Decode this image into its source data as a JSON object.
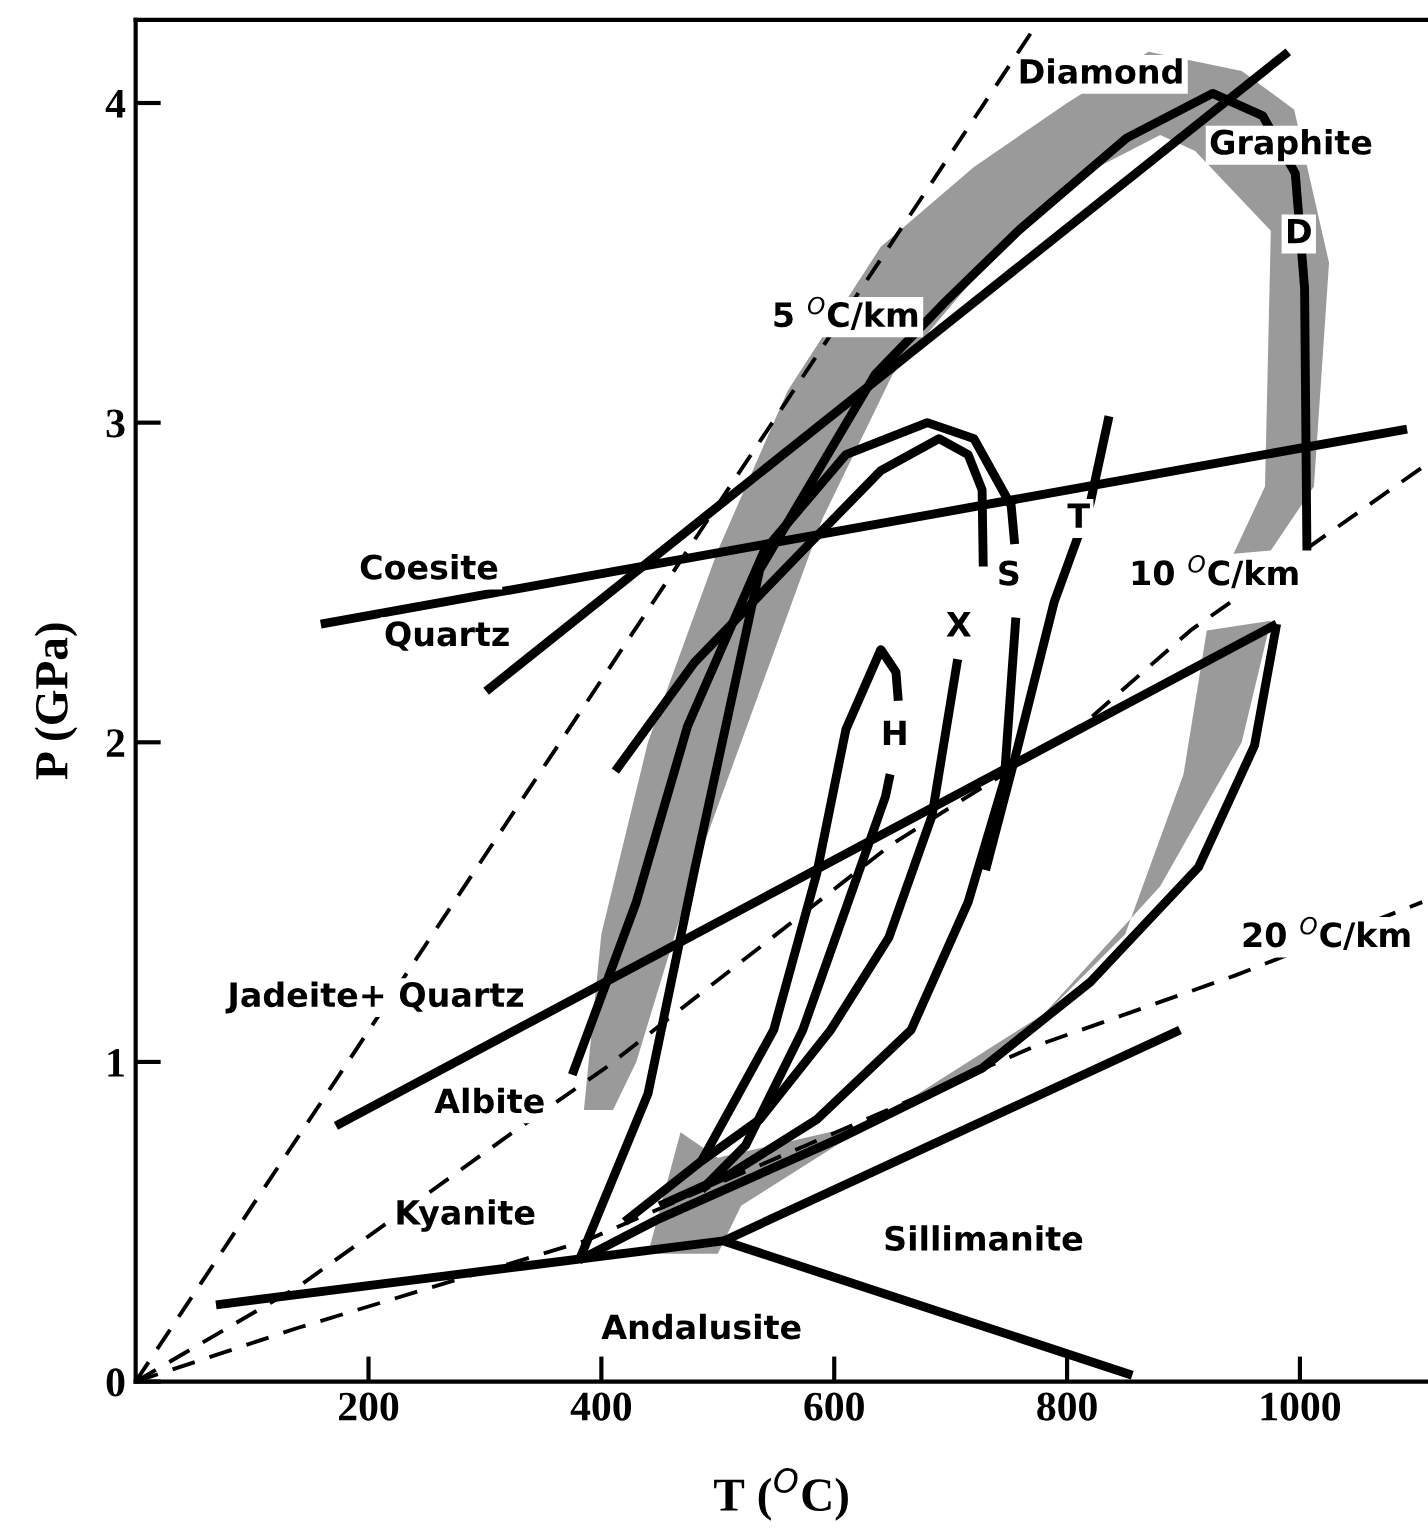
{
  "chart_data": {
    "type": "line",
    "xlabel": "T ($^{O}$C)",
    "ylabel": "P (GPa)",
    "xlim": [
      0,
      1110
    ],
    "ylim": [
      0,
      4.26
    ],
    "xticks": [
      200,
      400,
      600,
      800,
      1000
    ],
    "yticks": [
      0,
      1,
      2,
      3,
      4
    ],
    "grid": false,
    "legend": false,
    "marker": "none",
    "series": [
      {
        "type": "area",
        "color": "#9a9a9a",
        "x": [
          385,
          400,
          440,
          500,
          560,
          640,
          720,
          800,
          870,
          950,
          995,
          1025,
          1012,
          975,
          943,
          970,
          975,
          910,
          880,
          800,
          720,
          650,
          590,
          540,
          480,
          430,
          410
        ],
        "values": [
          0.85,
          1.4,
          2.0,
          2.6,
          3.1,
          3.55,
          3.8,
          4.0,
          4.16,
          4.1,
          3.98,
          3.5,
          2.8,
          2.6,
          2.59,
          2.8,
          3.6,
          3.85,
          3.9,
          3.75,
          3.45,
          3.15,
          2.7,
          2.2,
          1.6,
          1.0,
          0.85
        ]
      },
      {
        "type": "area",
        "color": "#9a9a9a",
        "x": [
          920,
          975,
          950,
          880,
          780,
          650,
          520,
          500,
          440,
          468,
          500,
          620,
          740,
          850,
          900
        ],
        "values": [
          2.35,
          2.38,
          2.0,
          1.55,
          1.15,
          0.85,
          0.55,
          0.4,
          0.4,
          0.78,
          0.7,
          0.8,
          1.0,
          1.4,
          1.9
        ]
      },
      {
        "color": "#000000",
        "line_style": "dashed",
        "x": [
          0,
          771
        ],
        "values": [
          0,
          4.23
        ]
      },
      {
        "color": "#000000",
        "line_style": "dashed",
        "x": [
          0,
          141,
          324,
          403,
          649,
          815,
          906,
          1105
        ],
        "values": [
          0,
          0.3,
          0.78,
          0.98,
          1.68,
          2.06,
          2.35,
          2.86
        ]
      },
      {
        "color": "#000000",
        "line_style": "dashed",
        "x": [
          0,
          141,
          386,
          773,
          944,
          1105
        ],
        "values": [
          0,
          0.17,
          0.44,
          1.05,
          1.27,
          1.5
        ]
      },
      {
        "color": "#000000",
        "x": [
          159,
          1092
        ],
        "values": [
          2.37,
          2.98
        ]
      },
      {
        "color": "#000000",
        "x": [
          301,
          990
        ],
        "values": [
          2.16,
          4.16
        ]
      },
      {
        "color": "#000000",
        "x": [
          172,
          980
        ],
        "values": [
          0.8,
          2.37
        ]
      },
      {
        "color": "#000000",
        "x": [
          69,
          505,
          856
        ],
        "values": [
          0.24,
          0.44,
          0.02
        ]
      },
      {
        "color": "#000000",
        "x": [
          505,
          897
        ],
        "values": [
          0.44,
          1.1
        ]
      },
      {
        "color": "#000000",
        "x": [
          381,
          440,
          480,
          536,
          635,
          696,
          758,
          851,
          925,
          968,
          996,
          1004,
          1006
        ],
        "values": [
          0.38,
          0.9,
          1.6,
          2.54,
          3.15,
          3.38,
          3.6,
          3.89,
          4.03,
          3.96,
          3.78,
          3.42,
          2.6
        ]
      },
      {
        "color": "#000000",
        "x": [
          980,
          961,
          913,
          820,
          727,
          604,
          450,
          381
        ],
        "values": [
          2.37,
          1.99,
          1.61,
          1.25,
          0.98,
          0.76,
          0.51,
          0.38
        ]
      },
      {
        "color": "#000000",
        "x": [
          375,
          430,
          474,
          540,
          610,
          680,
          720,
          752,
          755
        ],
        "values": [
          0.96,
          1.5,
          2.05,
          2.6,
          2.9,
          3.0,
          2.95,
          2.74,
          2.62
        ]
      },
      {
        "color": "#000000",
        "x": [
          756,
          746,
          715,
          666,
          585,
          511,
          450
        ],
        "values": [
          2.39,
          1.88,
          1.5,
          1.1,
          0.82,
          0.65,
          0.55
        ]
      },
      {
        "color": "#000000",
        "x": [
          412,
          480,
          573,
          640,
          690,
          715,
          727,
          728
        ],
        "values": [
          1.91,
          2.25,
          2.6,
          2.85,
          2.95,
          2.9,
          2.79,
          2.55
        ]
      },
      {
        "color": "#000000",
        "x": [
          706,
          684,
          647,
          597,
          536,
          486,
          420
        ],
        "values": [
          2.26,
          1.77,
          1.39,
          1.1,
          0.82,
          0.69,
          0.5
        ]
      },
      {
        "color": "#000000",
        "x": [
          836,
          820,
          800,
          789,
          758,
          730
        ],
        "values": [
          3.02,
          2.75,
          2.55,
          2.44,
          1.99,
          1.6
        ]
      },
      {
        "color": "#000000",
        "x": [
          486,
          548,
          585,
          610,
          640,
          653,
          655
        ],
        "values": [
          0.69,
          1.1,
          1.59,
          2.04,
          2.29,
          2.22,
          2.13
        ]
      },
      {
        "color": "#000000",
        "x": [
          648,
          644,
          610,
          573,
          524,
          486
        ],
        "values": [
          1.9,
          1.83,
          1.48,
          1.1,
          0.74,
          0.6
        ]
      }
    ],
    "annotations": [
      "Diamond",
      "Graphite",
      {
        "text": "5 $^{O}$C/km",
        "x": 610,
        "y": 3.33
      },
      "Coesite",
      "Quartz",
      "10 $^{O}$C/km",
      {
        "text": "D",
        "x": 999,
        "y": 3.59
      },
      {
        "text": "T",
        "x": 810,
        "y": 2.7
      },
      {
        "text": "S",
        "x": 750,
        "y": 2.52
      },
      {
        "text": "X",
        "x": 707,
        "y": 2.36
      },
      {
        "text": "H",
        "x": 652,
        "y": 2.02
      },
      {
        "text": "20 $^{O}$C/km",
        "x": 1023,
        "y": 1.39
      },
      "Jadeite+ Quartz",
      "Albite",
      "Kyanite",
      "Sillimanite",
      "Andalusite"
    ]
  }
}
